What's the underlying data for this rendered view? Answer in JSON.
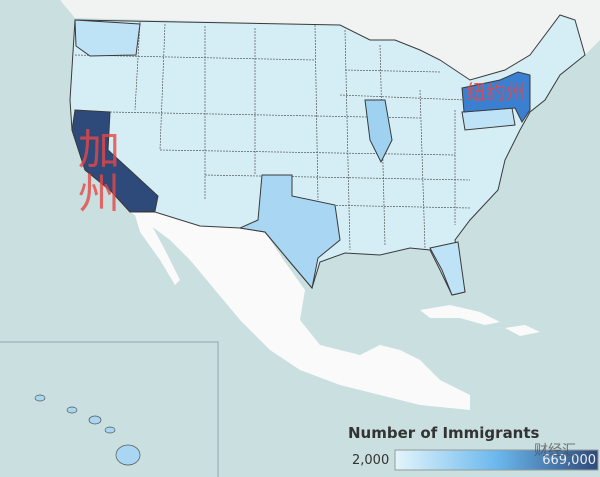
{
  "annotations": {
    "california": "加州",
    "new_york": "纽约州"
  },
  "legend": {
    "title": "Number of Immigrants",
    "min_label": "2,000",
    "max_label": "669,000"
  },
  "watermark": "财经汇"
}
